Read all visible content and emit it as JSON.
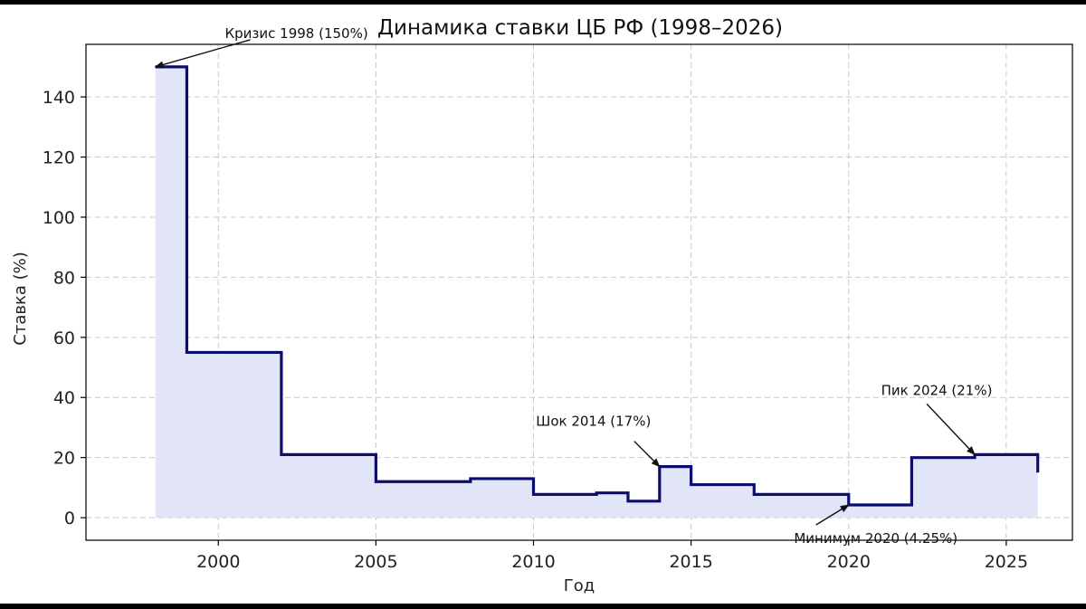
{
  "chart_data": {
    "type": "line",
    "style": "step",
    "title": "Динамика ставки ЦБ РФ (1998–2026)",
    "xlabel": "Год",
    "ylabel": "Ставка (%)",
    "xlim": [
      1995.8,
      2027.1
    ],
    "ylim": [
      -7.5,
      157.5
    ],
    "xticks": [
      2000,
      2005,
      2010,
      2015,
      2020,
      2025
    ],
    "yticks": [
      0,
      20,
      40,
      60,
      80,
      100,
      120,
      140
    ],
    "grid": true,
    "fill_under": true,
    "line_color": "#0b0f6b",
    "fill_color": "#e2e4f8",
    "x": [
      1998,
      1999,
      2002,
      2005,
      2008,
      2010,
      2012,
      2013,
      2014,
      2015,
      2017,
      2020,
      2022,
      2024,
      2026
    ],
    "y": [
      150,
      55,
      21,
      12,
      13,
      7.75,
      8.25,
      5.5,
      17,
      11,
      7.75,
      4.25,
      20,
      21,
      15
    ],
    "annotations": [
      {
        "text": "Кризис 1998 (150%)",
        "x": 1998,
        "y": 150
      },
      {
        "text": "Шок 2014 (17%)",
        "x": 2014,
        "y": 17
      },
      {
        "text": "Минимум 2020 (4.25%)",
        "x": 2020,
        "y": 4.25
      },
      {
        "text": "Пик 2024 (21%)",
        "x": 2024,
        "y": 21
      }
    ]
  }
}
